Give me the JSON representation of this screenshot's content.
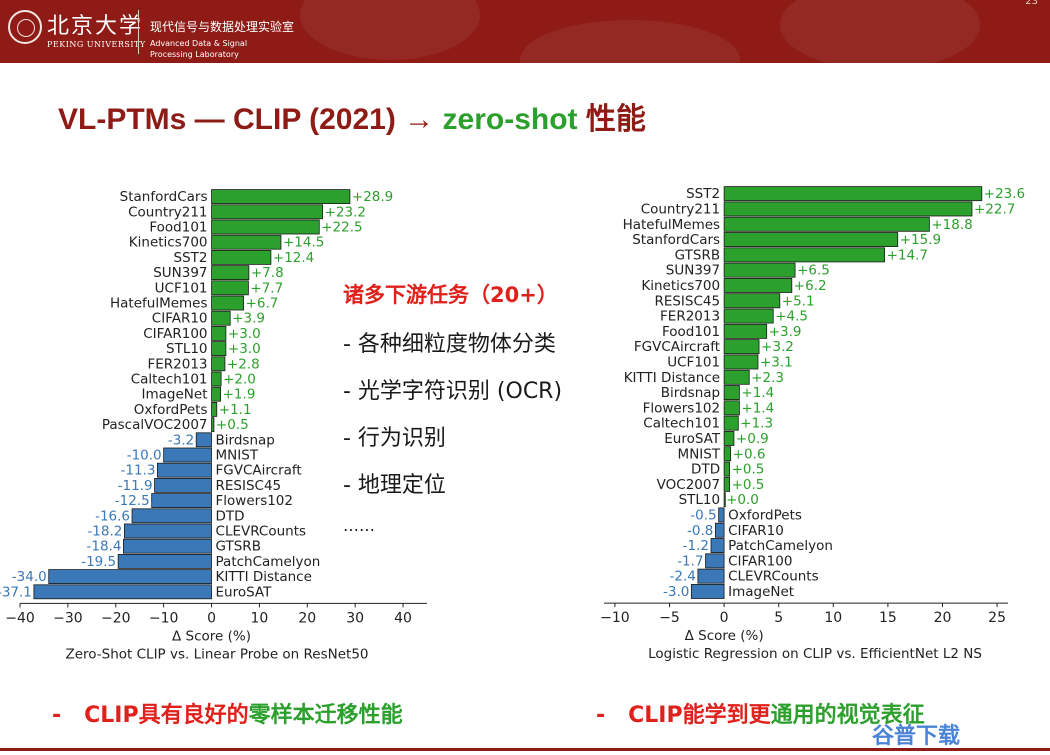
{
  "header": {
    "university_cn": "北京大学",
    "university_en": "PEKING UNIVERSITY",
    "lab_cn": "现代信号与数据处理实验室",
    "lab_en": "Advanced Data & Signal Processing Laboratory",
    "page_number": "23"
  },
  "title": {
    "part1": "VL-PTMs — CLIP (2021) → ",
    "part2": "zero-shot",
    "part3": " 性能"
  },
  "middle": {
    "heading": "诸多下游任务（20+）",
    "items": [
      "- 各种细粒度物体分类",
      "- 光学字符识别 (OCR)",
      "- 行为识别",
      "- 地理定位",
      "……"
    ]
  },
  "bottom": {
    "left_dash": "-",
    "left_red": "CLIP具有良好的",
    "left_green": "零样本迁移性能",
    "right_dash": "-",
    "right_red": "CLIP能学到更",
    "right_green": "通用的视觉表征"
  },
  "watermark": "谷普下载",
  "colors": {
    "positive": "#2ca02c",
    "negative": "#3a78b8",
    "positive_text": "#2ca02c",
    "negative_text": "#3a78b8",
    "brand": "#8e1b16"
  },
  "chart_data": [
    {
      "type": "bar",
      "orientation": "horizontal",
      "xlabel": "Δ Score (%)",
      "caption": "Zero-Shot CLIP vs. Linear Probe on ResNet50",
      "xlim": [
        -40,
        45
      ],
      "xticks": [
        -40,
        -30,
        -20,
        -10,
        0,
        10,
        20,
        30,
        40
      ],
      "categories": [
        "StanfordCars",
        "Country211",
        "Food101",
        "Kinetics700",
        "SST2",
        "SUN397",
        "UCF101",
        "HatefulMemes",
        "CIFAR10",
        "CIFAR100",
        "STL10",
        "FER2013",
        "Caltech101",
        "ImageNet",
        "OxfordPets",
        "PascalVOC2007",
        "Birdsnap",
        "MNIST",
        "FGVCAircraft",
        "RESISC45",
        "Flowers102",
        "DTD",
        "CLEVRCounts",
        "GTSRB",
        "PatchCamelyon",
        "KITTI Distance",
        "EuroSAT"
      ],
      "values": [
        28.9,
        23.2,
        22.5,
        14.5,
        12.4,
        7.8,
        7.7,
        6.7,
        3.9,
        3.0,
        3.0,
        2.8,
        2.0,
        1.9,
        1.1,
        0.5,
        -3.2,
        -10.0,
        -11.3,
        -11.9,
        -12.5,
        -16.6,
        -18.2,
        -18.4,
        -19.5,
        -34.0,
        -37.1
      ],
      "value_labels": [
        "+28.9",
        "+23.2",
        "+22.5",
        "+14.5",
        "+12.4",
        "+7.8",
        "+7.7",
        "+6.7",
        "+3.9",
        "+3.0",
        "+3.0",
        "+2.8",
        "+2.0",
        "+1.9",
        "+1.1",
        "+0.5",
        "-3.2",
        "-10.0",
        "-11.3",
        "-11.9",
        "-12.5",
        "-16.6",
        "-18.2",
        "-18.4",
        "-19.5",
        "-34.0",
        "-37.1"
      ]
    },
    {
      "type": "bar",
      "orientation": "horizontal",
      "xlabel": "Δ Score (%)",
      "caption": "Logistic Regression on CLIP vs. EfficientNet L2 NS",
      "xlim": [
        -11,
        26
      ],
      "xticks": [
        -10,
        -5,
        0,
        5,
        10,
        15,
        20,
        25
      ],
      "categories": [
        "SST2",
        "Country211",
        "HatefulMemes",
        "StanfordCars",
        "GTSRB",
        "SUN397",
        "Kinetics700",
        "RESISC45",
        "FER2013",
        "Food101",
        "FGVCAircraft",
        "UCF101",
        "KITTI Distance",
        "Birdsnap",
        "Flowers102",
        "Caltech101",
        "EuroSAT",
        "MNIST",
        "DTD",
        "VOC2007",
        "STL10",
        "OxfordPets",
        "CIFAR10",
        "PatchCamelyon",
        "CIFAR100",
        "CLEVRCounts",
        "ImageNet"
      ],
      "values": [
        23.6,
        22.7,
        18.8,
        15.9,
        14.7,
        6.5,
        6.2,
        5.1,
        4.5,
        3.9,
        3.2,
        3.1,
        2.3,
        1.4,
        1.4,
        1.3,
        0.9,
        0.6,
        0.5,
        0.5,
        0.0,
        -0.5,
        -0.8,
        -1.2,
        -1.7,
        -2.4,
        -3.0
      ],
      "value_labels": [
        "+23.6",
        "+22.7",
        "+18.8",
        "+15.9",
        "+14.7",
        "+6.5",
        "+6.2",
        "+5.1",
        "+4.5",
        "+3.9",
        "+3.2",
        "+3.1",
        "+2.3",
        "+1.4",
        "+1.4",
        "+1.3",
        "+0.9",
        "+0.6",
        "+0.5",
        "+0.5",
        "+0.0",
        "-0.5",
        "-0.8",
        "-1.2",
        "-1.7",
        "-2.4",
        "-3.0"
      ]
    }
  ]
}
